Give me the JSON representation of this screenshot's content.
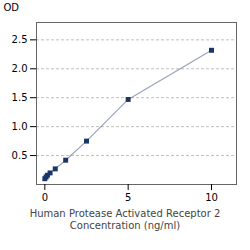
{
  "chart_data": {
    "type": "line",
    "x": [
      0.0,
      0.078,
      0.156,
      0.313,
      0.625,
      1.25,
      2.5,
      5.0,
      10.0
    ],
    "values": [
      0.1,
      0.13,
      0.16,
      0.2,
      0.27,
      0.42,
      0.75,
      1.47,
      2.32
    ],
    "color": "#1a3566",
    "marker": "square",
    "xlabel": "Human Protease Activated Receptor 2\nConcentration (ng/ml)",
    "ylabel": "OD",
    "xlim": [
      -0.5,
      11.5
    ],
    "ylim": [
      0.0,
      2.8
    ],
    "xticks": [
      0,
      5,
      10
    ],
    "yticks": [
      0.5,
      {
        "value": 1.0,
        "label": "1.0"
      },
      1.5,
      {
        "value": 2.0,
        "label": "2.0"
      },
      2.5
    ],
    "grid": true
  }
}
